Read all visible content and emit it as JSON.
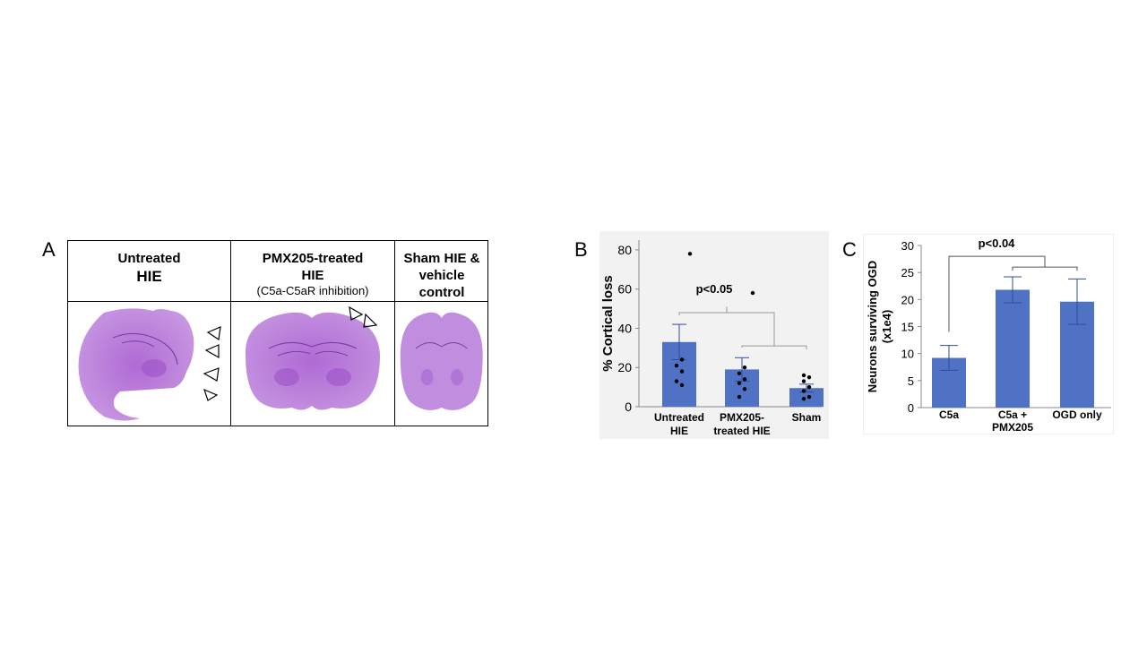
{
  "panel_a": {
    "letter": "A",
    "columns": [
      {
        "line1": "Untreated",
        "line2": "HIE",
        "line3": ""
      },
      {
        "line1": "PMX205-treated",
        "line2": "HIE",
        "line3": "(C5a-C5aR inhibition)"
      },
      {
        "line1": "Sham HIE &",
        "line2": "vehicle control",
        "line3": ""
      }
    ],
    "tissue_color": "#b469d6"
  },
  "chart_data": [
    {
      "panel": "B",
      "type": "bar",
      "categories": [
        "Untreated HIE",
        "PMX205-treated HIE",
        "Sham"
      ],
      "category_lines": [
        [
          "Untreated",
          "HIE"
        ],
        [
          "PMX205-",
          "treated HIE"
        ],
        [
          "Sham"
        ]
      ],
      "values": [
        33,
        19,
        9.5
      ],
      "error": [
        9,
        6,
        2
      ],
      "points": [
        [
          78,
          24,
          21,
          18,
          13,
          11
        ],
        [
          58,
          20,
          17,
          14,
          12,
          9,
          5
        ],
        [
          16,
          15,
          13,
          10,
          8,
          5,
          4
        ]
      ],
      "ylabel": "% Cortical loss",
      "ylim": [
        0,
        85
      ],
      "yticks": [
        0,
        20,
        40,
        60,
        80
      ],
      "annotation": "p<0.05",
      "bar_color": "#4f72c4",
      "grid": false
    },
    {
      "panel": "C",
      "type": "bar",
      "categories": [
        "C5a",
        "C5a + PMX205",
        "OGD only"
      ],
      "category_lines": [
        [
          "C5a"
        ],
        [
          "C5a +",
          "PMX205"
        ],
        [
          "OGD only"
        ]
      ],
      "values": [
        9.2,
        21.8,
        19.6
      ],
      "error": [
        2.3,
        2.4,
        4.2
      ],
      "ylabel": "Neurons surviving OGD",
      "ylabel2": "(x1e4)",
      "ylim": [
        0,
        30
      ],
      "yticks": [
        0,
        5,
        10,
        15,
        20,
        25,
        30
      ],
      "annotation": "p<0.04",
      "bar_color": "#4f72c4",
      "grid": false
    }
  ]
}
